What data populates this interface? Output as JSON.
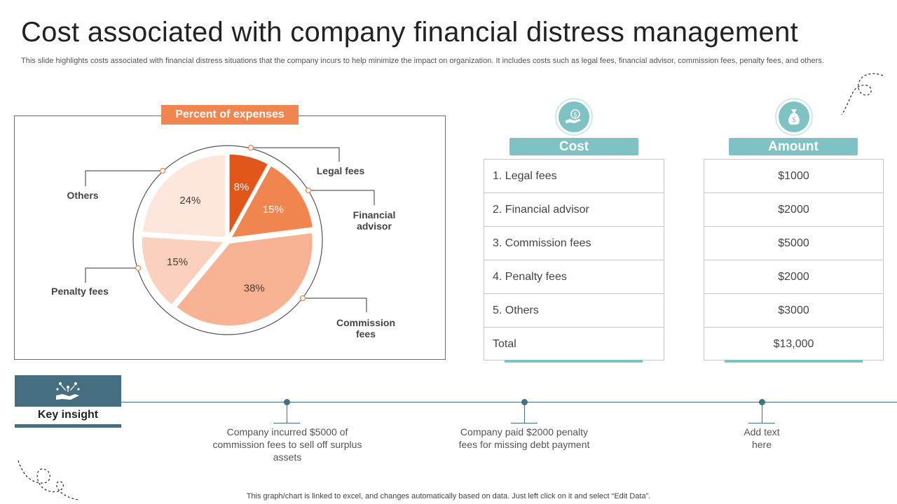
{
  "title": "Cost associated with company financial distress management",
  "subtitle": "This slide highlights costs associated with financial distress situations that the company incurs to help minimize the impact on organization. It includes costs such as legal fees, financial advisor, commission fees, penalty fees, and others.",
  "chart_data": {
    "type": "pie",
    "title": "Percent of expenses",
    "slices": [
      {
        "label": "Legal fees",
        "value": 8,
        "display": "8%",
        "color": "#e0561b"
      },
      {
        "label": "Financial advisor",
        "value": 15,
        "display": "15%",
        "color": "#f0854f"
      },
      {
        "label": "Commission fees",
        "value": 38,
        "display": "38%",
        "color": "#f6b293"
      },
      {
        "label": "Penalty fees",
        "value": 15,
        "display": "15%",
        "color": "#fbd1bd"
      },
      {
        "label": "Others",
        "value": 24,
        "display": "24%",
        "color": "#fde6dc"
      }
    ]
  },
  "cost_table": {
    "header": "Cost",
    "rows": [
      "1. Legal fees",
      "2. Financial advisor",
      "3. Commission fees",
      "4. Penalty fees",
      "5. Others",
      "Total"
    ]
  },
  "amount_table": {
    "header": "Amount",
    "rows": [
      "$1000",
      "$2000",
      "$5000",
      "$2000",
      "$3000",
      "$13,000"
    ]
  },
  "insight": {
    "label": "Key insight",
    "items": [
      "Company incurred $5000 of commission fees to sell off surplus assets",
      "Company paid $2000 penalty fees for missing debt payment",
      "Add text here"
    ]
  },
  "footer": "This graph/chart is linked to excel,  and changes automatically based on data. Just left click on it and select “Edit Data”.",
  "colors": {
    "accent_teal": "#7fc2c3",
    "dark_slate": "#456e80",
    "orange": "#f0854f"
  }
}
